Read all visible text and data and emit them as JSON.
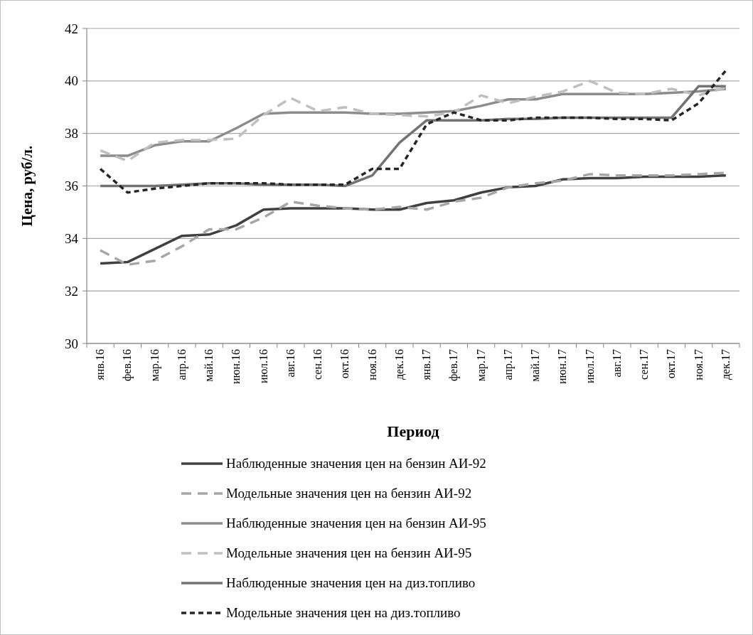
{
  "chart_data": {
    "type": "line",
    "xlabel": "Период",
    "ylabel": "Цена, руб/л.",
    "categories": [
      "янв.16",
      "фев.16",
      "мар.16",
      "апр.16",
      "май.16",
      "июн.16",
      "июл.16",
      "авг.16",
      "сен.16",
      "окт.16",
      "ноя.16",
      "дек.16",
      "янв.17",
      "фев.17",
      "мар.17",
      "апр.17",
      "май.17",
      "июн.17",
      "июл.17",
      "авг.17",
      "сен.17",
      "окт.17",
      "ноя.17",
      "дек.17"
    ],
    "series": [
      {
        "name": "Наблюденные значения цен на бензин АИ-92",
        "color": "#404040",
        "line_style": "solid",
        "values": [
          33.05,
          33.1,
          33.6,
          34.1,
          34.15,
          34.5,
          35.1,
          35.15,
          35.15,
          35.15,
          35.1,
          35.1,
          35.35,
          35.45,
          35.75,
          35.95,
          36.0,
          36.25,
          36.3,
          36.3,
          36.35,
          36.35,
          36.35,
          36.4
        ]
      },
      {
        "name": "Модельные значения цен на бензин АИ-92",
        "color": "#a6a6a6",
        "line_style": "dashed",
        "values": [
          33.55,
          33.0,
          33.15,
          33.7,
          34.35,
          34.35,
          34.8,
          35.4,
          35.25,
          35.15,
          35.1,
          35.2,
          35.1,
          35.4,
          35.55,
          35.95,
          36.1,
          36.2,
          36.45,
          36.4,
          36.4,
          36.4,
          36.45,
          36.5
        ]
      },
      {
        "name": "Наблюденные значения цен на бензин АИ-95",
        "color": "#8c8c8c",
        "line_style": "solid",
        "values": [
          37.15,
          37.15,
          37.55,
          37.7,
          37.7,
          38.2,
          38.75,
          38.8,
          38.8,
          38.8,
          38.75,
          38.75,
          38.8,
          38.85,
          39.05,
          39.3,
          39.3,
          39.5,
          39.5,
          39.5,
          39.5,
          39.55,
          39.6,
          39.7
        ]
      },
      {
        "name": "Модельные значения цен на бензин АИ-95",
        "color": "#bfbfbf",
        "line_style": "dashed",
        "values": [
          37.35,
          36.95,
          37.65,
          37.75,
          37.75,
          37.8,
          38.7,
          39.35,
          38.85,
          39.0,
          38.75,
          38.7,
          38.65,
          38.8,
          39.45,
          39.15,
          39.4,
          39.6,
          40.0,
          39.55,
          39.5,
          39.7,
          39.45,
          39.75
        ]
      },
      {
        "name": "Наблюденные значения цен на диз.топливо",
        "color": "#737373",
        "line_style": "solid",
        "values": [
          36.0,
          36.0,
          36.0,
          36.05,
          36.1,
          36.1,
          36.05,
          36.05,
          36.05,
          36.0,
          36.4,
          37.65,
          38.5,
          38.5,
          38.5,
          38.55,
          38.55,
          38.6,
          38.6,
          38.6,
          38.6,
          38.6,
          39.8,
          39.8
        ]
      },
      {
        "name": "Модельные значения цен на диз.топливо",
        "color": "#262626",
        "line_style": "dotted",
        "values": [
          36.65,
          35.75,
          35.9,
          36.0,
          36.1,
          36.1,
          36.1,
          36.05,
          36.05,
          36.05,
          36.65,
          36.65,
          38.35,
          38.8,
          38.5,
          38.5,
          38.6,
          38.6,
          38.6,
          38.55,
          38.55,
          38.5,
          39.15,
          40.4
        ]
      }
    ],
    "ylim": [
      30,
      42
    ],
    "yticks": [
      30,
      32,
      34,
      36,
      38,
      40,
      42
    ],
    "grid": "y",
    "legend": "bottom"
  }
}
